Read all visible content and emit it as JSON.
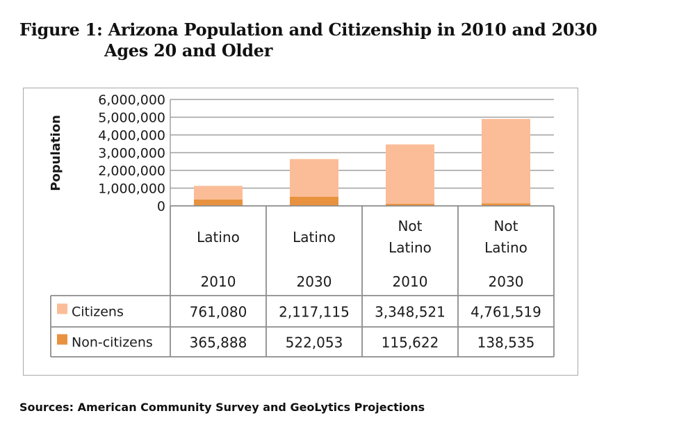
{
  "figure": {
    "title": "Figure 1: Arizona Population and Citizenship in 2010 and 2030",
    "subtitle": "Ages 20 and Older",
    "sources": "Sources: American Community Survey and GeoLytics Projections"
  },
  "colors": {
    "citizens": "#fbbd98",
    "non_citizens": "#e8923f",
    "grid": "#a0a0a0",
    "table_border": "#8c8c8c"
  },
  "chart_data": {
    "type": "bar",
    "stacked": true,
    "title": "Figure 1: Arizona Population and Citizenship in 2010 and 2030",
    "subtitle": "Ages 20 and Older",
    "xlabel": "",
    "ylabel": "Population",
    "ylim": [
      0,
      6000000
    ],
    "yticks": [
      0,
      1000000,
      2000000,
      3000000,
      4000000,
      5000000,
      6000000
    ],
    "ytick_labels": [
      "0",
      "1,000,000",
      "2,000,000",
      "3,000,000",
      "4,000,000",
      "5,000,000",
      "6,000,000"
    ],
    "grid": true,
    "legend": "data-table-left",
    "categories": [
      {
        "group_lines": [
          "Latino"
        ],
        "year": "2010"
      },
      {
        "group_lines": [
          "Latino"
        ],
        "year": "2030"
      },
      {
        "group_lines": [
          "Not",
          "Latino"
        ],
        "year": "2010"
      },
      {
        "group_lines": [
          "Not",
          "Latino"
        ],
        "year": "2030"
      }
    ],
    "series": [
      {
        "name": "Non-citizens",
        "values": [
          365888,
          522053,
          115622,
          138535
        ],
        "labels": [
          "365,888",
          "522,053",
          "115,622",
          "138,535"
        ]
      },
      {
        "name": "Citizens",
        "values": [
          761080,
          2117115,
          3348521,
          4761519
        ],
        "labels": [
          "761,080",
          "2,117,115",
          "3,348,521",
          "4,761,519"
        ]
      }
    ],
    "table_rows": [
      "Citizens",
      "Non-citizens"
    ]
  }
}
